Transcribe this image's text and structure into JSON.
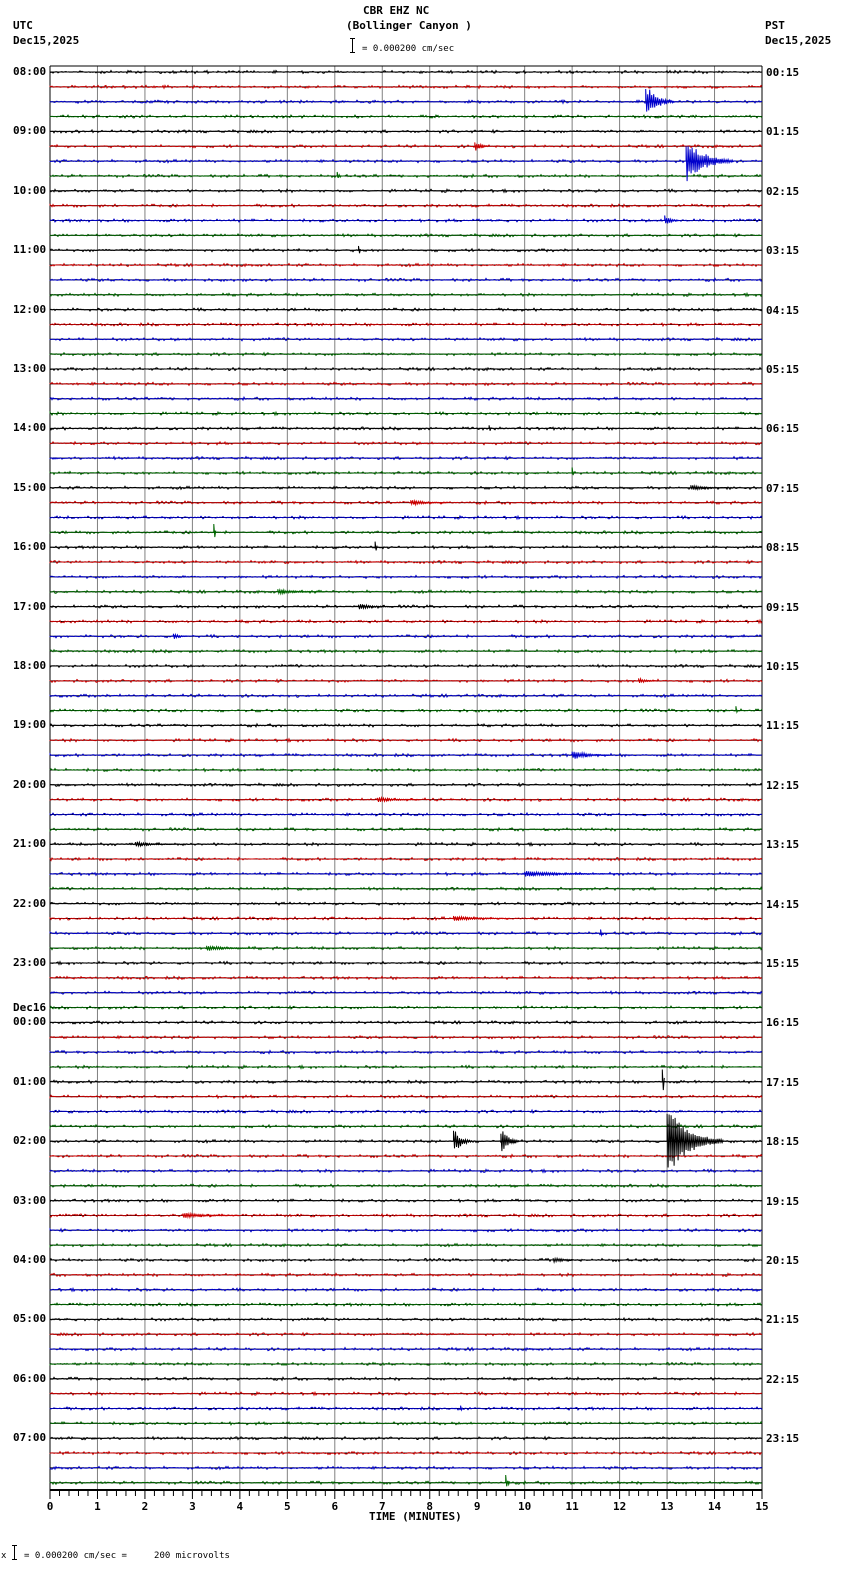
{
  "header": {
    "station": "CBR EHZ NC",
    "location": "(Bollinger Canyon )",
    "left_tz": "UTC",
    "left_date": "Dec15,2025",
    "right_tz": "PST",
    "right_date": "Dec15,2025",
    "scale_text": "= 0.000200 cm/sec"
  },
  "footer": {
    "scale_text": "= 0.000200 cm/sec =     200 microvolts",
    "prefix": "x"
  },
  "colors": {
    "trace_cycle": [
      "#000000",
      "#cc0000",
      "#0000cc",
      "#006600"
    ],
    "grid": "#808080",
    "baseline": "#000000"
  },
  "chart_data": {
    "type": "line",
    "title": "CBR EHZ NC (Bollinger Canyon )",
    "xlabel": "TIME (MINUTES)",
    "ylabel": "",
    "x_ticks": [
      "0",
      "1",
      "2",
      "3",
      "4",
      "5",
      "6",
      "7",
      "8",
      "9",
      "10",
      "11",
      "12",
      "13",
      "14",
      "15"
    ],
    "xlim": [
      0,
      15
    ],
    "grid": true,
    "rows_per_hour": 4,
    "row_count": 96,
    "left_labels": [
      {
        "row": 0,
        "text": "08:00"
      },
      {
        "row": 4,
        "text": "09:00"
      },
      {
        "row": 8,
        "text": "10:00"
      },
      {
        "row": 12,
        "text": "11:00"
      },
      {
        "row": 16,
        "text": "12:00"
      },
      {
        "row": 20,
        "text": "13:00"
      },
      {
        "row": 24,
        "text": "14:00"
      },
      {
        "row": 28,
        "text": "15:00"
      },
      {
        "row": 32,
        "text": "16:00"
      },
      {
        "row": 36,
        "text": "17:00"
      },
      {
        "row": 40,
        "text": "18:00"
      },
      {
        "row": 44,
        "text": "19:00"
      },
      {
        "row": 48,
        "text": "20:00"
      },
      {
        "row": 52,
        "text": "21:00"
      },
      {
        "row": 56,
        "text": "22:00"
      },
      {
        "row": 60,
        "text": "23:00"
      },
      {
        "row": 64,
        "text": "00:00",
        "date": "Dec16"
      },
      {
        "row": 68,
        "text": "01:00"
      },
      {
        "row": 72,
        "text": "02:00"
      },
      {
        "row": 76,
        "text": "03:00"
      },
      {
        "row": 80,
        "text": "04:00"
      },
      {
        "row": 84,
        "text": "05:00"
      },
      {
        "row": 88,
        "text": "06:00"
      },
      {
        "row": 92,
        "text": "07:00"
      }
    ],
    "right_labels": [
      {
        "row": 0,
        "text": "00:15"
      },
      {
        "row": 4,
        "text": "01:15"
      },
      {
        "row": 8,
        "text": "02:15"
      },
      {
        "row": 12,
        "text": "03:15"
      },
      {
        "row": 16,
        "text": "04:15"
      },
      {
        "row": 20,
        "text": "05:15"
      },
      {
        "row": 24,
        "text": "06:15"
      },
      {
        "row": 28,
        "text": "07:15"
      },
      {
        "row": 32,
        "text": "08:15"
      },
      {
        "row": 36,
        "text": "09:15"
      },
      {
        "row": 40,
        "text": "10:15"
      },
      {
        "row": 44,
        "text": "11:15"
      },
      {
        "row": 48,
        "text": "12:15"
      },
      {
        "row": 52,
        "text": "13:15"
      },
      {
        "row": 56,
        "text": "14:15"
      },
      {
        "row": 60,
        "text": "15:15"
      },
      {
        "row": 64,
        "text": "16:15"
      },
      {
        "row": 68,
        "text": "17:15"
      },
      {
        "row": 72,
        "text": "18:15"
      },
      {
        "row": 76,
        "text": "19:15"
      },
      {
        "row": 80,
        "text": "20:15"
      },
      {
        "row": 84,
        "text": "21:15"
      },
      {
        "row": 88,
        "text": "22:15"
      },
      {
        "row": 92,
        "text": "23:15"
      }
    ],
    "events": [
      {
        "row": 2,
        "minute": 12.55,
        "amp": 18,
        "dur": 0.6
      },
      {
        "row": 5,
        "minute": 8.95,
        "amp": 6,
        "dur": 0.3
      },
      {
        "row": 6,
        "minute": 13.4,
        "amp": 24,
        "dur": 1.0
      },
      {
        "row": 7,
        "minute": 6.05,
        "amp": 6,
        "dur": 0.1
      },
      {
        "row": 10,
        "minute": 12.95,
        "amp": 6,
        "dur": 0.3
      },
      {
        "row": 12,
        "minute": 6.5,
        "amp": 7,
        "dur": 0.05
      },
      {
        "row": 24,
        "minute": 9.25,
        "amp": 6,
        "dur": 0.05
      },
      {
        "row": 27,
        "minute": 11.0,
        "amp": 7,
        "dur": 0.05
      },
      {
        "row": 28,
        "minute": 13.5,
        "amp": 3,
        "dur": 0.8
      },
      {
        "row": 29,
        "minute": 7.6,
        "amp": 3,
        "dur": 0.8
      },
      {
        "row": 31,
        "minute": 3.45,
        "amp": 12,
        "dur": 0.05
      },
      {
        "row": 32,
        "minute": 6.85,
        "amp": 8,
        "dur": 0.05
      },
      {
        "row": 35,
        "minute": 4.8,
        "amp": 3,
        "dur": 1.0
      },
      {
        "row": 36,
        "minute": 6.5,
        "amp": 3,
        "dur": 0.8
      },
      {
        "row": 38,
        "minute": 2.6,
        "amp": 3,
        "dur": 0.3
      },
      {
        "row": 41,
        "minute": 12.4,
        "amp": 3,
        "dur": 0.4
      },
      {
        "row": 43,
        "minute": 14.45,
        "amp": 5,
        "dur": 0.05
      },
      {
        "row": 46,
        "minute": 11.0,
        "amp": 5,
        "dur": 0.8
      },
      {
        "row": 49,
        "minute": 6.9,
        "amp": 3,
        "dur": 0.9
      },
      {
        "row": 52,
        "minute": 1.8,
        "amp": 3,
        "dur": 0.8
      },
      {
        "row": 54,
        "minute": 10.0,
        "amp": 3,
        "dur": 2.0
      },
      {
        "row": 57,
        "minute": 8.5,
        "amp": 3,
        "dur": 1.2
      },
      {
        "row": 58,
        "minute": 11.6,
        "amp": 5,
        "dur": 0.05
      },
      {
        "row": 59,
        "minute": 3.3,
        "amp": 3,
        "dur": 1.0
      },
      {
        "row": 68,
        "minute": 12.9,
        "amp": 24,
        "dur": 0.05
      },
      {
        "row": 72,
        "minute": 8.5,
        "amp": 14,
        "dur": 0.4
      },
      {
        "row": 72,
        "minute": 9.5,
        "amp": 14,
        "dur": 0.4
      },
      {
        "row": 72,
        "minute": 13.0,
        "amp": 36,
        "dur": 1.2
      },
      {
        "row": 77,
        "minute": 2.8,
        "amp": 3,
        "dur": 1.2
      },
      {
        "row": 80,
        "minute": 10.6,
        "amp": 3,
        "dur": 0.6
      },
      {
        "row": 90,
        "minute": 8.65,
        "amp": 5,
        "dur": 0.05
      },
      {
        "row": 95,
        "minute": 9.6,
        "amp": 10,
        "dur": 0.1
      }
    ]
  }
}
